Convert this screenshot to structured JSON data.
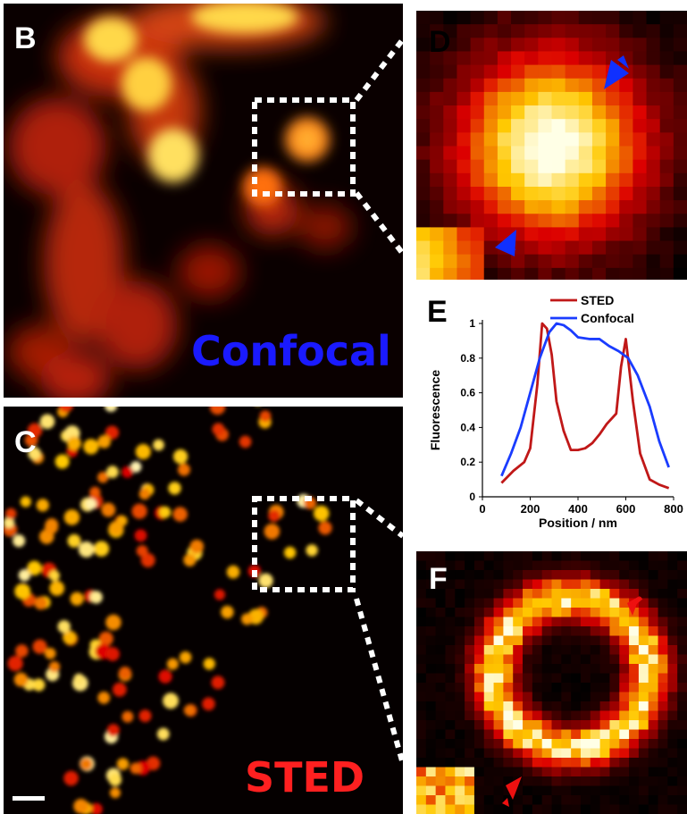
{
  "panels": {
    "B": {
      "letter": "B",
      "label": "Confocal",
      "label_color": "#1a1aff"
    },
    "C": {
      "letter": "C",
      "label": "STED",
      "label_color": "#ff2020"
    },
    "D": {
      "letter": "D",
      "arrow_color": "#1030ff"
    },
    "E": {
      "letter": "E"
    },
    "F": {
      "letter": "F",
      "arrow_color": "#ee1010"
    }
  },
  "chart_data": {
    "type": "line",
    "xlabel": "Position / nm",
    "ylabel": "Fluorescence",
    "xlim": [
      0,
      800
    ],
    "ylim": [
      0,
      1
    ],
    "xticks": [
      "0",
      "200",
      "400",
      "600",
      "800"
    ],
    "yticks": [
      "0",
      "0.2",
      "0.4",
      "0.6",
      "0.8",
      "1"
    ],
    "legend_position": "top-right",
    "series": [
      {
        "name": "STED",
        "color": "#c01818",
        "x": [
          80,
          130,
          175,
          200,
          230,
          250,
          270,
          290,
          310,
          340,
          370,
          400,
          430,
          460,
          490,
          520,
          560,
          580,
          600,
          630,
          660,
          700,
          740,
          780
        ],
        "y": [
          0.08,
          0.15,
          0.2,
          0.28,
          0.65,
          1.0,
          0.97,
          0.82,
          0.55,
          0.38,
          0.27,
          0.27,
          0.28,
          0.31,
          0.36,
          0.42,
          0.48,
          0.75,
          0.91,
          0.55,
          0.25,
          0.1,
          0.07,
          0.05
        ]
      },
      {
        "name": "Confocal",
        "color": "#1a3cff",
        "x": [
          80,
          120,
          160,
          200,
          240,
          280,
          310,
          340,
          370,
          400,
          450,
          490,
          530,
          570,
          610,
          650,
          700,
          740,
          780
        ],
        "y": [
          0.12,
          0.25,
          0.4,
          0.6,
          0.8,
          0.95,
          1.0,
          0.99,
          0.96,
          0.92,
          0.91,
          0.91,
          0.87,
          0.84,
          0.8,
          0.7,
          0.52,
          0.32,
          0.17
        ]
      }
    ]
  }
}
